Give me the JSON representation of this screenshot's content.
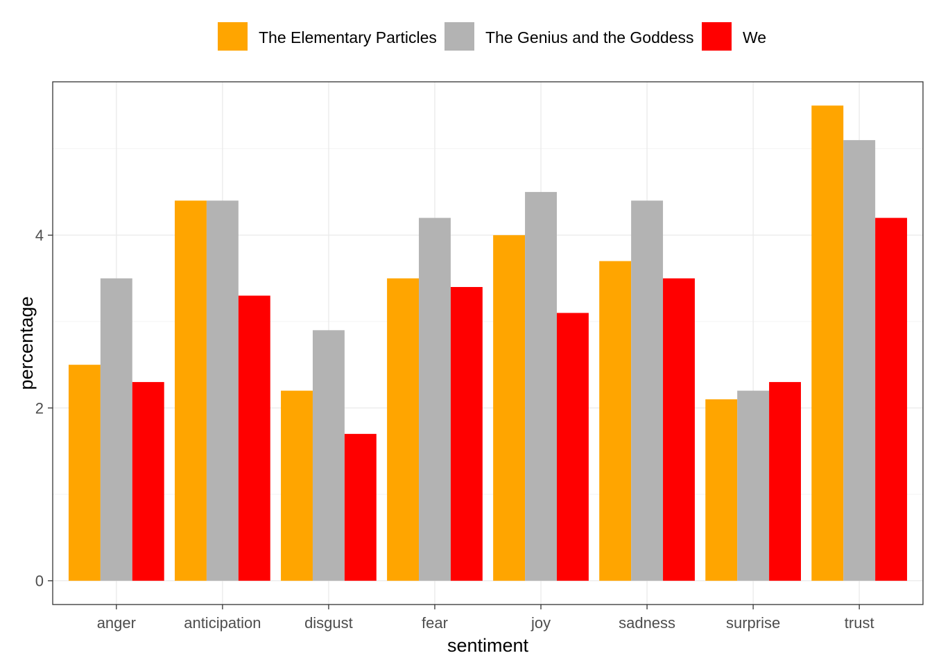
{
  "chart_data": {
    "type": "bar",
    "title": "",
    "xlabel": "sentiment",
    "ylabel": "percentage",
    "categories": [
      "anger",
      "anticipation",
      "disgust",
      "fear",
      "joy",
      "sadness",
      "surprise",
      "trust"
    ],
    "series": [
      {
        "name": "The Elementary Particles",
        "color": "#FFA500",
        "values": [
          2.5,
          4.4,
          2.2,
          3.5,
          4.0,
          3.7,
          2.1,
          5.5
        ]
      },
      {
        "name": "The Genius and the Goddess",
        "color": "#B3B3B3",
        "values": [
          3.5,
          4.4,
          2.9,
          4.2,
          4.5,
          4.4,
          2.2,
          5.1
        ]
      },
      {
        "name": "We",
        "color": "#FF0000",
        "values": [
          2.3,
          3.3,
          1.7,
          3.4,
          3.1,
          3.5,
          2.3,
          4.2
        ]
      }
    ],
    "ylim": [
      -0.275,
      5.775
    ],
    "yticks": [
      0,
      2,
      4
    ],
    "grid": true,
    "legend_position": "top"
  }
}
